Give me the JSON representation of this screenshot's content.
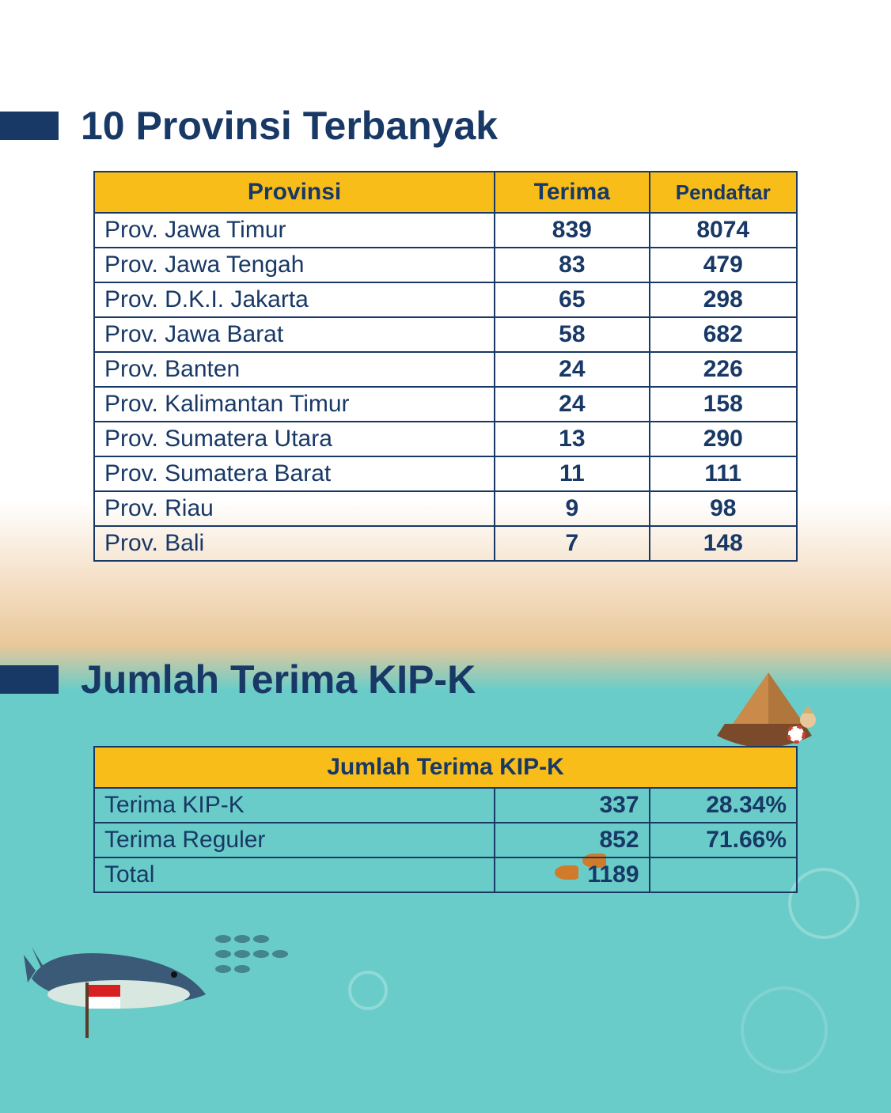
{
  "section1": {
    "title": "10 Provinsi Terbanyak",
    "columns": {
      "provinsi": "Provinsi",
      "terima": "Terima",
      "pendaftar": "Pendaftar"
    },
    "rows": [
      {
        "provinsi": "Prov. Jawa Timur",
        "terima": "839",
        "pendaftar": "8074"
      },
      {
        "provinsi": "Prov. Jawa Tengah",
        "terima": "83",
        "pendaftar": "479"
      },
      {
        "provinsi": "Prov. D.K.I. Jakarta",
        "terima": "65",
        "pendaftar": "298"
      },
      {
        "provinsi": "Prov. Jawa Barat",
        "terima": "58",
        "pendaftar": "682"
      },
      {
        "provinsi": "Prov. Banten",
        "terima": "24",
        "pendaftar": "226"
      },
      {
        "provinsi": "Prov. Kalimantan Timur",
        "terima": "24",
        "pendaftar": "158"
      },
      {
        "provinsi": "Prov. Sumatera Utara",
        "terima": "13",
        "pendaftar": "290"
      },
      {
        "provinsi": "Prov. Sumatera Barat",
        "terima": "11",
        "pendaftar": "111"
      },
      {
        "provinsi": "Prov. Riau",
        "terima": "9",
        "pendaftar": "98"
      },
      {
        "provinsi": "Prov. Bali",
        "terima": "7",
        "pendaftar": "148"
      }
    ]
  },
  "section2": {
    "title": "Jumlah Terima KIP-K",
    "header": "Jumlah Terima KIP-K",
    "rows": [
      {
        "label": "Terima KIP-K",
        "value": "337",
        "pct": "28.34%"
      },
      {
        "label": "Terima Reguler",
        "value": "852",
        "pct": "71.66%"
      },
      {
        "label": "Total",
        "value": "1189",
        "pct": ""
      }
    ]
  },
  "styling": {
    "header_bg": "#f8bd19",
    "text_color": "#183866",
    "border_color": "#183866",
    "bg_gradient_top": "#ffffff",
    "bg_gradient_sand": "#e8c89a",
    "bg_gradient_water": "#6accc8",
    "title_font_size_pt": 38,
    "th_font_size_pt": 22,
    "td_font_size_pt": 22
  }
}
